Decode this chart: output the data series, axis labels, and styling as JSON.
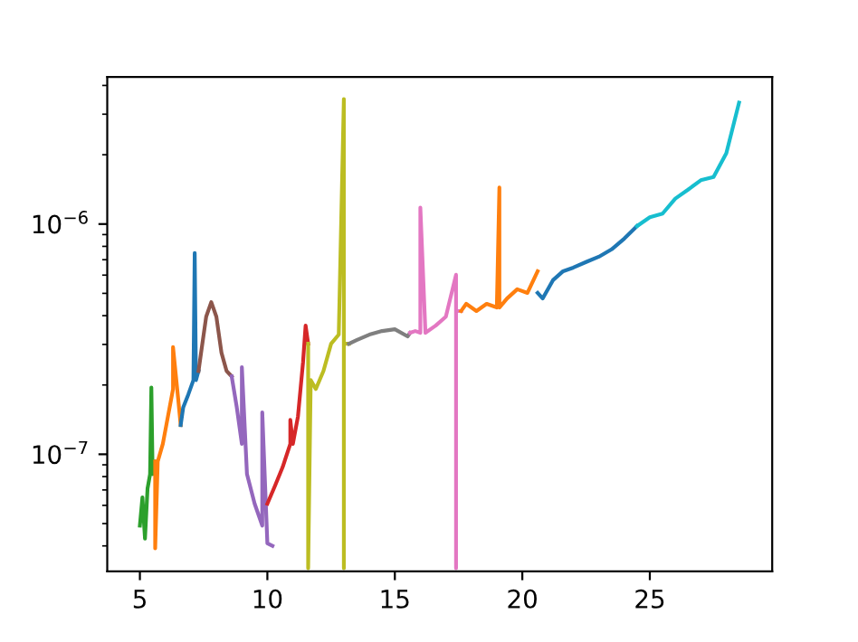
{
  "chart_data": {
    "type": "line",
    "log": "y",
    "grid": false,
    "xlim": [
      3.72,
      29.8
    ],
    "ylim": [
      3.1e-08,
      4.35e-06
    ],
    "xticks": [
      5,
      10,
      15,
      20,
      25
    ],
    "yticks": [
      {
        "value": 1e-07,
        "label": "10$^{−7}$"
      },
      {
        "value": 1e-06,
        "label": "10$^{−6}$"
      }
    ],
    "series": [
      {
        "color": "#2ca02c",
        "x": [
          5.0,
          5.1,
          5.2,
          5.3,
          5.4,
          5.45,
          5.5,
          5.6
        ],
        "values": [
          4.9e-08,
          6.5e-08,
          4.3e-08,
          7.1e-08,
          8.2e-08,
          1.95e-07,
          8.2e-08,
          9.3e-08
        ]
      },
      {
        "color": "#ff7f0e",
        "x": [
          5.6,
          5.6,
          5.7,
          5.9,
          6.1,
          6.3,
          6.3,
          6.5,
          6.6
        ],
        "values": [
          9.3e-08,
          3.9e-08,
          9.3e-08,
          1.11e-07,
          1.46e-07,
          1.92e-07,
          2.92e-07,
          1.75e-07,
          1.34e-07
        ]
      },
      {
        "color": "#1f77b4",
        "x": [
          6.6,
          6.7,
          6.9,
          7.1,
          7.15,
          7.2,
          7.3
        ],
        "values": [
          1.34e-07,
          1.6e-07,
          1.82e-07,
          2.1e-07,
          7.48e-07,
          2.1e-07,
          2.3e-07
        ]
      },
      {
        "color": "#8c564b",
        "x": [
          7.3,
          7.4,
          7.6,
          7.8,
          8.0,
          8.2,
          8.4,
          8.6
        ],
        "values": [
          2.3e-07,
          2.76e-07,
          3.96e-07,
          4.58e-07,
          3.96e-07,
          2.76e-07,
          2.3e-07,
          2.18e-07
        ]
      },
      {
        "color": "#9467bd",
        "x": [
          8.6,
          8.8,
          9.0,
          9.0,
          9.2,
          9.5,
          9.8,
          9.8,
          10.0,
          10.2
        ],
        "values": [
          2.18e-07,
          1.6e-07,
          1.11e-07,
          2.39e-07,
          8.2e-08,
          6.1e-08,
          4.9e-08,
          1.52e-07,
          4.1e-08,
          4e-08
        ]
      },
      {
        "color": "#d62728",
        "x": [
          10.0,
          10.3,
          10.6,
          10.9,
          10.9,
          11.0,
          11.2,
          11.4,
          11.5,
          11.6
        ],
        "values": [
          6.1e-08,
          7.3e-08,
          8.8e-08,
          1.11e-07,
          1.41e-07,
          1.11e-07,
          1.46e-07,
          2.52e-07,
          3.62e-07,
          3.02e-07
        ]
      },
      {
        "color": "#bcbd22",
        "x": [
          11.6,
          11.6,
          11.7,
          11.9,
          12.2,
          12.5,
          12.8,
          13.0,
          13.0,
          13.0,
          13.2
        ],
        "values": [
          3.02e-07,
          3.2e-08,
          2.1e-07,
          1.92e-07,
          2.3e-07,
          3.02e-07,
          3.31e-07,
          3.49e-06,
          3.2e-08,
          3.02e-07,
          3.02e-07
        ]
      },
      {
        "color": "#7f7f7f",
        "x": [
          13.2,
          13.5,
          14.0,
          14.5,
          15.0,
          15.5,
          15.6
        ],
        "values": [
          3.02e-07,
          3.13e-07,
          3.31e-07,
          3.43e-07,
          3.49e-07,
          3.25e-07,
          3.37e-07
        ]
      },
      {
        "color": "#e377c2",
        "x": [
          15.6,
          15.8,
          16.0,
          16.0,
          16.2,
          16.6,
          17.0,
          17.4,
          17.4,
          17.4,
          17.6
        ],
        "values": [
          3.37e-07,
          3.43e-07,
          3.37e-07,
          1.18e-06,
          3.37e-07,
          3.62e-07,
          3.96e-07,
          6.02e-07,
          3.2e-08,
          4.19e-07,
          4.19e-07
        ]
      },
      {
        "color": "#ff7f0e",
        "x": [
          17.6,
          17.8,
          18.2,
          18.6,
          19.0,
          19.1,
          19.1,
          19.4,
          19.8,
          20.2,
          20.6
        ],
        "values": [
          4.19e-07,
          4.5e-07,
          4.19e-07,
          4.5e-07,
          4.34e-07,
          1.44e-06,
          4.34e-07,
          4.75e-07,
          5.21e-07,
          5.02e-07,
          6.24e-07
        ]
      },
      {
        "color": "#1f77b4",
        "x": [
          20.6,
          20.8,
          21.2,
          21.6,
          22.0,
          22.5,
          23.0,
          23.5,
          24.0,
          24.5
        ],
        "values": [
          5.02e-07,
          4.75e-07,
          5.7e-07,
          6.24e-07,
          6.47e-07,
          6.84e-07,
          7.21e-07,
          7.76e-07,
          8.65e-07,
          9.8e-07
        ]
      },
      {
        "color": "#17becf",
        "x": [
          24.5,
          25.0,
          25.5,
          26.0,
          26.5,
          27.0,
          27.5,
          28.0,
          28.5
        ],
        "values": [
          9.8e-07,
          1.07e-06,
          1.11e-06,
          1.29e-06,
          1.41e-06,
          1.55e-06,
          1.6e-06,
          2.03e-06,
          3.37e-06
        ]
      }
    ]
  }
}
